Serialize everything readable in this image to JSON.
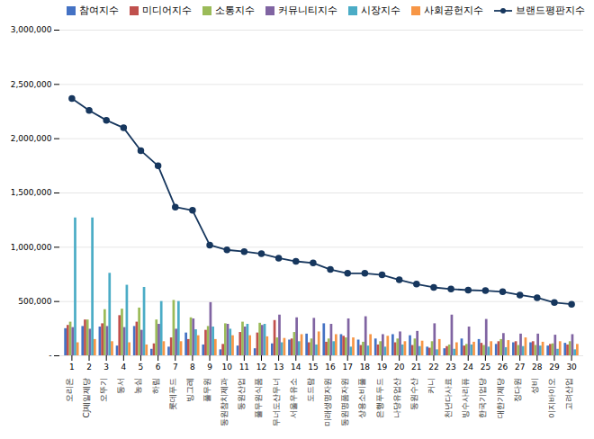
{
  "chart_data": {
    "type": "bar",
    "categories": [
      "1",
      "2",
      "3",
      "4",
      "5",
      "6",
      "7",
      "8",
      "9",
      "10",
      "11",
      "12",
      "13",
      "14",
      "15",
      "16",
      "17",
      "18",
      "19",
      "20",
      "21",
      "22",
      "23",
      "24",
      "25",
      "26",
      "27",
      "28",
      "29",
      "30"
    ],
    "annotations": [
      {
        "x": "1",
        "text": "오리온"
      },
      {
        "x": "2",
        "text": "CJ제일제당"
      },
      {
        "x": "3",
        "text": "오뚜기"
      },
      {
        "x": "4",
        "text": "동서"
      },
      {
        "x": "5",
        "text": "농심"
      },
      {
        "x": "6",
        "text": "하림"
      },
      {
        "x": "7",
        "text": "롯데푸드"
      },
      {
        "x": "8",
        "text": "빙그레"
      },
      {
        "x": "9",
        "text": "풀무원"
      },
      {
        "x": "10",
        "text": "동원참치제과"
      },
      {
        "x": "11",
        "text": "동원산업"
      },
      {
        "x": "12",
        "text": "풀무원식품"
      },
      {
        "x": "13",
        "text": "무너도산무너"
      },
      {
        "x": "14",
        "text": "서울우유소"
      },
      {
        "x": "15",
        "text": "도드람"
      },
      {
        "x": "16",
        "text": "미래생명자원"
      },
      {
        "x": "17",
        "text": "동원명품자원"
      },
      {
        "x": "18",
        "text": "상용소비풀"
      },
      {
        "x": "19",
        "text": "은행푸두드"
      },
      {
        "x": "20",
        "text": "나당유업산"
      },
      {
        "x": "21",
        "text": "동원수산"
      },
      {
        "x": "22",
        "text": "커니"
      },
      {
        "x": "23",
        "text": "천년다사료"
      },
      {
        "x": "24",
        "text": "빙수사리퓨"
      },
      {
        "x": "25",
        "text": "한국기업당"
      },
      {
        "x": "26",
        "text": "대한기제당"
      },
      {
        "x": "27",
        "text": "정다원"
      },
      {
        "x": "28",
        "text": "성비"
      },
      {
        "x": "29",
        "text": "이지바이오"
      },
      {
        "x": "30",
        "text": "고려산업"
      }
    ],
    "series": [
      {
        "name": "참여지수",
        "type": "bar",
        "color": "#4472C4",
        "values": [
          250000,
          270000,
          265000,
          90000,
          270000,
          60000,
          80000,
          210000,
          100000,
          55000,
          90000,
          65000,
          110000,
          145000,
          200000,
          295000,
          195000,
          145000,
          155000,
          195000,
          185000,
          80000,
          65000,
          155000,
          150000,
          105000,
          120000,
          120000,
          90000,
          115000
        ]
      },
      {
        "name": "미디어지수",
        "type": "bar",
        "color": "#C0504D",
        "values": [
          280000,
          330000,
          295000,
          370000,
          310000,
          110000,
          165000,
          150000,
          235000,
          105000,
          215000,
          210000,
          325000,
          155000,
          120000,
          125000,
          180000,
          95000,
          100000,
          120000,
          95000,
          70000,
          85000,
          90000,
          115000,
          130000,
          130000,
          130000,
          105000,
          100000
        ]
      },
      {
        "name": "소통지수",
        "type": "bar",
        "color": "#9BBB59",
        "values": [
          310000,
          330000,
          425000,
          430000,
          440000,
          330000,
          510000,
          350000,
          270000,
          295000,
          310000,
          300000,
          165000,
          215000,
          155000,
          155000,
          165000,
          125000,
          130000,
          155000,
          155000,
          130000,
          100000,
          105000,
          95000,
          150000,
          95000,
          95000,
          110000,
          130000
        ]
      },
      {
        "name": "커뮤니티지수",
        "type": "bar",
        "color": "#8064A2",
        "values": [
          260000,
          245000,
          270000,
          260000,
          235000,
          290000,
          245000,
          340000,
          490000,
          290000,
          265000,
          280000,
          375000,
          350000,
          345000,
          290000,
          340000,
          360000,
          195000,
          220000,
          225000,
          295000,
          375000,
          265000,
          335000,
          205000,
          200000,
          200000,
          190000,
          195000
        ]
      },
      {
        "name": "시장지수",
        "type": "bar",
        "color": "#4BACC6",
        "values": [
          1270000,
          1270000,
          760000,
          650000,
          630000,
          500000,
          500000,
          240000,
          265000,
          245000,
          290000,
          290000,
          120000,
          130000,
          100000,
          130000,
          80000,
          90000,
          80000,
          100000,
          85000,
          55000,
          60000,
          100000,
          80000,
          75000,
          85000,
          90000,
          60000,
          55000
        ]
      },
      {
        "name": "사회공헌지수",
        "type": "bar",
        "color": "#F79646",
        "values": [
          120000,
          150000,
          130000,
          120000,
          100000,
          130000,
          130000,
          185000,
          150000,
          185000,
          185000,
          175000,
          160000,
          195000,
          220000,
          195000,
          165000,
          195000,
          180000,
          130000,
          135000,
          150000,
          120000,
          125000,
          130000,
          140000,
          165000,
          125000,
          130000,
          105000
        ]
      },
      {
        "name": "브랜드평판지수",
        "type": "line",
        "marker": "circle",
        "color": "#17375E",
        "values": [
          2370000,
          2260000,
          2170000,
          2100000,
          1890000,
          1750000,
          1370000,
          1340000,
          1020000,
          975000,
          960000,
          940000,
          900000,
          870000,
          855000,
          795000,
          760000,
          760000,
          745000,
          700000,
          660000,
          630000,
          615000,
          605000,
          600000,
          590000,
          560000,
          535000,
          490000,
          475000
        ]
      }
    ],
    "ylim": [
      0,
      3000000
    ],
    "yticks": [
      {
        "value": 0,
        "label": "-"
      },
      {
        "value": 500000,
        "label": "500,000"
      },
      {
        "value": 1000000,
        "label": "1,000,000"
      },
      {
        "value": 1500000,
        "label": "1,500,000"
      },
      {
        "value": 2000000,
        "label": "2,000,000"
      },
      {
        "value": 2500000,
        "label": "2,500,000"
      },
      {
        "value": 3000000,
        "label": "3,000,000"
      }
    ],
    "grid": true,
    "legend": "upper right"
  }
}
